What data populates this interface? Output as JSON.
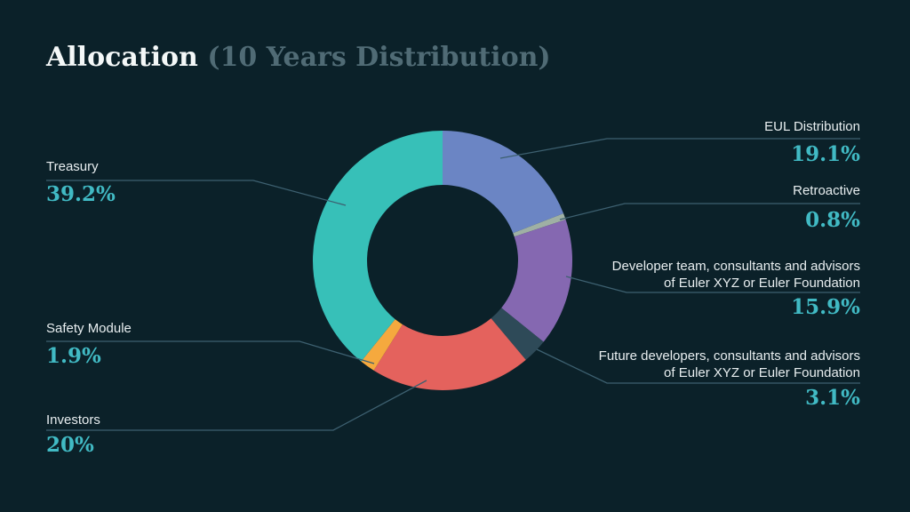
{
  "title": {
    "main": "Allocation",
    "subtitle": "(10 Years Distribution)"
  },
  "colors": {
    "background": "#0b2129",
    "title_main": "#f4f8f8",
    "title_subtitle": "#506b75",
    "label_text": "#e8eef0",
    "percent_text": "#41bac4",
    "leader_line": "#3d6070"
  },
  "chart_data": {
    "type": "pie",
    "variant": "donut",
    "title": "Allocation (10 Years Distribution)",
    "unit": "%",
    "start_angle": "top",
    "direction": "clockwise",
    "legend_position": "callout-labels",
    "segments": [
      {
        "id": "eul-distribution",
        "label": "EUL Distribution",
        "value": 19.1,
        "pct_label": "19.1%",
        "color": "#6b85c4"
      },
      {
        "id": "retroactive",
        "label": "Retroactive",
        "value": 0.8,
        "pct_label": "0.8%",
        "color": "#9fb0a4"
      },
      {
        "id": "developer-team",
        "label": "Developer team, consultants and advisors\nof Euler XYZ or Euler Foundation",
        "value": 15.9,
        "pct_label": "15.9%",
        "color": "#8568b1"
      },
      {
        "id": "future-developers",
        "label": "Future developers, consultants and advisors\nof Euler XYZ or Euler Foundation",
        "value": 3.1,
        "pct_label": "3.1%",
        "color": "#2e4a58"
      },
      {
        "id": "investors",
        "label": "Investors",
        "value": 20,
        "pct_label": "20%",
        "color": "#e4625d"
      },
      {
        "id": "safety-module",
        "label": "Safety Module",
        "value": 1.9,
        "pct_label": "1.9%",
        "color": "#f5a93e"
      },
      {
        "id": "treasury",
        "label": "Treasury",
        "value": 39.2,
        "pct_label": "39.2%",
        "color": "#37c0b8"
      }
    ]
  }
}
